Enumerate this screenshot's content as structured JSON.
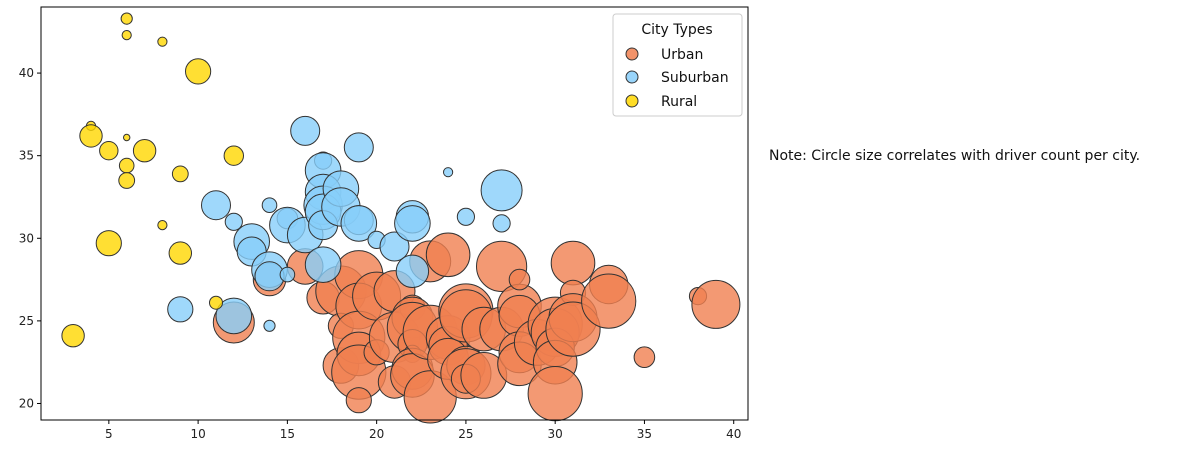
{
  "chart_data": {
    "type": "scatter",
    "title": "",
    "xlabel": "",
    "ylabel": "",
    "xlim": [
      1.2,
      40.8
    ],
    "ylim": [
      19,
      44
    ],
    "xticks": [
      5,
      10,
      15,
      20,
      25,
      30,
      35,
      40
    ],
    "yticks": [
      20,
      25,
      30,
      35,
      40
    ],
    "grid": false,
    "legend": {
      "title": "City Types",
      "placement": "top-right",
      "entries": [
        "Urban",
        "Suburban",
        "Rural"
      ]
    },
    "series": [
      {
        "name": "Urban",
        "color": "#F08050",
        "points": [
          [
            12,
            24.9,
            40
          ],
          [
            14,
            27.5,
            25
          ],
          [
            16,
            28.3,
            30
          ],
          [
            17,
            26.4,
            25
          ],
          [
            18,
            26.8,
            60
          ],
          [
            18,
            24.7,
            15
          ],
          [
            18,
            22.3,
            30
          ],
          [
            19,
            27.8,
            55
          ],
          [
            19,
            25.9,
            50
          ],
          [
            19,
            24.0,
            65
          ],
          [
            19,
            23.0,
            45
          ],
          [
            19,
            21.9,
            70
          ],
          [
            19,
            20.2,
            15
          ],
          [
            20,
            26.5,
            55
          ],
          [
            20,
            23.1,
            15
          ],
          [
            21,
            26.8,
            40
          ],
          [
            21,
            24.0,
            60
          ],
          [
            21,
            21.3,
            25
          ],
          [
            22,
            25.8,
            15
          ],
          [
            22,
            25.2,
            40
          ],
          [
            22,
            24.6,
            60
          ],
          [
            22,
            23.6,
            20
          ],
          [
            22,
            23.0,
            7
          ],
          [
            22,
            22.1,
            40
          ],
          [
            22,
            21.7,
            45
          ],
          [
            23,
            28.6,
            40
          ],
          [
            23,
            24.3,
            70
          ],
          [
            23,
            20.4,
            65
          ],
          [
            24,
            29.0,
            45
          ],
          [
            24,
            24.0,
            45
          ],
          [
            24,
            23.5,
            35
          ],
          [
            24,
            22.7,
            40
          ],
          [
            25,
            25.6,
            70
          ],
          [
            25,
            25.3,
            65
          ],
          [
            25,
            22.3,
            35
          ],
          [
            25,
            21.8,
            60
          ],
          [
            25,
            21.5,
            20
          ],
          [
            26,
            24.5,
            45
          ],
          [
            26,
            21.7,
            50
          ],
          [
            27,
            28.3,
            60
          ],
          [
            27,
            24.5,
            45
          ],
          [
            28,
            25.9,
            45
          ],
          [
            28,
            25.3,
            40
          ],
          [
            28,
            23.1,
            40
          ],
          [
            28,
            22.4,
            45
          ],
          [
            28,
            27.5,
            10
          ],
          [
            29,
            23.7,
            50
          ],
          [
            30,
            24.8,
            70
          ],
          [
            30,
            24.3,
            55
          ],
          [
            30,
            23.4,
            35
          ],
          [
            30,
            22.5,
            45
          ],
          [
            30,
            20.6,
            70
          ],
          [
            31,
            28.5,
            45
          ],
          [
            31,
            26.7,
            15
          ],
          [
            31,
            25.2,
            55
          ],
          [
            31,
            24.5,
            70
          ],
          [
            33,
            27.2,
            35
          ],
          [
            33,
            26.2,
            70
          ],
          [
            35,
            22.8,
            10
          ],
          [
            38,
            26.5,
            7
          ],
          [
            39,
            26.0,
            55
          ]
        ]
      },
      {
        "name": "Suburban",
        "color": "#87CEFA",
        "points": [
          [
            9,
            25.7,
            15
          ],
          [
            11,
            32.0,
            20
          ],
          [
            12,
            31.0,
            7
          ],
          [
            12,
            25.3,
            30
          ],
          [
            13,
            29.8,
            30
          ],
          [
            13,
            29.2,
            20
          ],
          [
            14,
            32.0,
            5
          ],
          [
            14,
            28.1,
            30
          ],
          [
            14,
            27.7,
            20
          ],
          [
            14,
            24.7,
            3
          ],
          [
            15,
            31.2,
            10
          ],
          [
            15,
            30.8,
            30
          ],
          [
            15,
            27.8,
            5
          ],
          [
            16,
            36.5,
            20
          ],
          [
            16,
            30.2,
            30
          ],
          [
            17,
            34.7,
            7
          ],
          [
            17,
            34.1,
            30
          ],
          [
            17,
            32.8,
            30
          ],
          [
            17,
            32.0,
            35
          ],
          [
            17,
            31.6,
            30
          ],
          [
            17,
            30.8,
            20
          ],
          [
            17,
            28.4,
            30
          ],
          [
            18,
            33.0,
            30
          ],
          [
            18,
            31.9,
            35
          ],
          [
            19,
            35.5,
            20
          ],
          [
            19,
            31.1,
            20
          ],
          [
            19,
            30.9,
            30
          ],
          [
            20,
            29.9,
            7
          ],
          [
            21,
            29.5,
            20
          ],
          [
            22,
            31.3,
            25
          ],
          [
            22,
            30.9,
            30
          ],
          [
            22,
            28.0,
            25
          ],
          [
            24,
            34.0,
            2
          ],
          [
            25,
            31.3,
            7
          ],
          [
            27,
            32.9,
            40
          ],
          [
            27,
            30.9,
            7
          ]
        ]
      },
      {
        "name": "Rural",
        "color": "#FFD700",
        "points": [
          [
            3,
            24.1,
            12
          ],
          [
            4,
            36.8,
            2
          ],
          [
            4,
            36.2,
            12
          ],
          [
            5,
            35.3,
            8
          ],
          [
            5,
            29.7,
            15
          ],
          [
            6,
            43.3,
            3
          ],
          [
            6,
            42.3,
            2
          ],
          [
            6,
            36.1,
            1
          ],
          [
            6,
            34.4,
            5
          ],
          [
            6,
            33.5,
            6
          ],
          [
            7,
            35.3,
            12
          ],
          [
            8,
            41.9,
            2
          ],
          [
            8,
            30.8,
            2
          ],
          [
            9,
            33.9,
            6
          ],
          [
            9,
            29.1,
            12
          ],
          [
            10,
            40.1,
            15
          ],
          [
            11,
            26.1,
            4
          ],
          [
            12,
            35.0,
            9
          ]
        ]
      }
    ]
  },
  "note": "Note: Circle size correlates with driver count per city."
}
